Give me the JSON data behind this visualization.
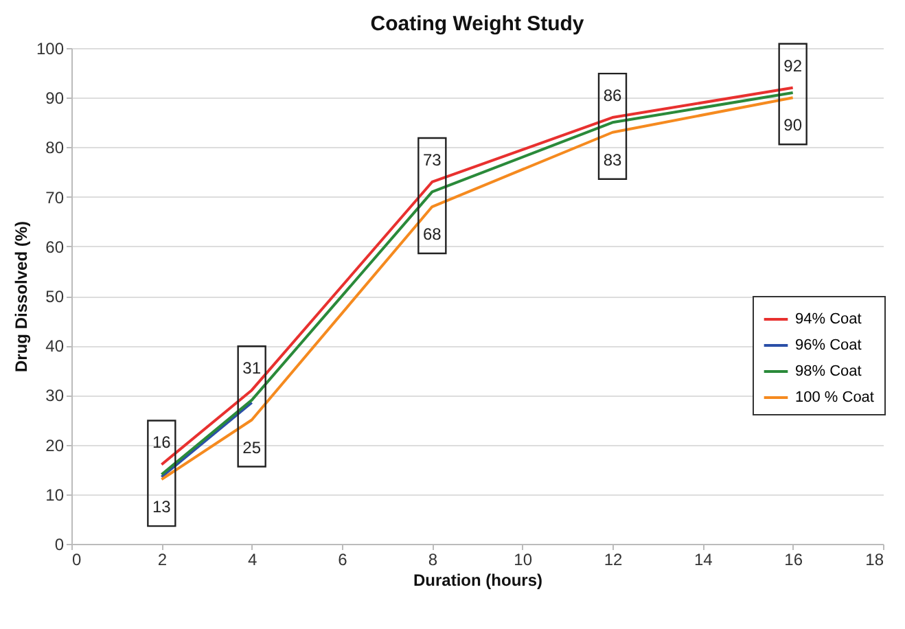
{
  "chart_data": {
    "type": "line",
    "title": "Coating Weight Study",
    "xlabel": "Duration (hours)",
    "ylabel": "Drug Dissolved (%)",
    "x": [
      2,
      4,
      8,
      12,
      16
    ],
    "series": [
      {
        "name": "94% Coat",
        "color": "#e8312f",
        "values": [
          16,
          31,
          73,
          86,
          92
        ],
        "value_labels": [
          "16",
          "31",
          "73",
          "86",
          "92"
        ]
      },
      {
        "name": "96% Coat",
        "color": "#2b4fa8",
        "values": [
          13.5,
          28.5,
          null,
          null,
          null
        ]
      },
      {
        "name": "98% Coat",
        "color": "#2a8a3a",
        "values": [
          14,
          29,
          71,
          85,
          91
        ]
      },
      {
        "name": "100 % Coat",
        "color": "#f58a1f",
        "values": [
          13,
          25,
          68,
          83,
          90
        ],
        "value_labels": [
          "13",
          "25",
          "68",
          "83",
          "90"
        ]
      }
    ],
    "xlim": [
      0,
      18
    ],
    "xticks": [
      0,
      2,
      4,
      6,
      8,
      10,
      12,
      14,
      16,
      18
    ],
    "ylim": [
      0,
      100
    ],
    "yticks": [
      0,
      10,
      20,
      30,
      40,
      50,
      60,
      70,
      80,
      90,
      100
    ],
    "grid": "y",
    "legend": "right",
    "marker": "none",
    "line_style": "solid"
  }
}
